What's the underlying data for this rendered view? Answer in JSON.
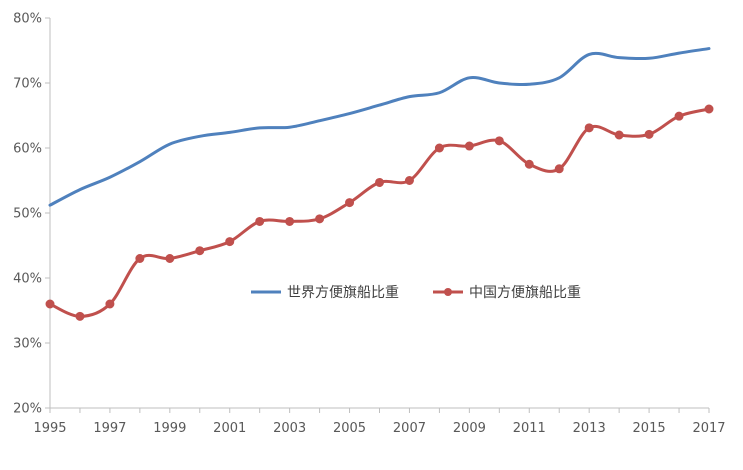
{
  "chart_data": {
    "type": "line",
    "title": "",
    "xlabel": "",
    "ylabel": "",
    "x": [
      1995,
      1996,
      1997,
      1998,
      1999,
      2000,
      2001,
      2002,
      2003,
      2004,
      2005,
      2006,
      2007,
      2008,
      2009,
      2010,
      2011,
      2012,
      2013,
      2014,
      2015,
      2016,
      2017
    ],
    "x_tick_labels": [
      "1995",
      "1997",
      "1999",
      "2001",
      "2003",
      "2005",
      "2007",
      "2009",
      "2011",
      "2013",
      "2015",
      "2017"
    ],
    "y_tick_labels": [
      "20%",
      "30%",
      "40%",
      "50%",
      "60%",
      "70%",
      "80%"
    ],
    "ylim": [
      20,
      80
    ],
    "y_ticks": [
      20,
      30,
      40,
      50,
      60,
      70,
      80
    ],
    "grid": false,
    "legend_position": "center",
    "series": [
      {
        "name": "世界方便旗船比重",
        "color": "#4F81BD",
        "markers": false,
        "values": [
          51.2,
          53.6,
          55.5,
          57.9,
          60.6,
          61.8,
          62.4,
          63.1,
          63.2,
          64.2,
          65.3,
          66.6,
          67.9,
          68.5,
          70.8,
          70.0,
          69.8,
          70.8,
          74.4,
          73.9,
          73.8,
          74.6,
          75.3
        ]
      },
      {
        "name": "中国方便旗船比重",
        "color": "#C0504D",
        "markers": true,
        "values": [
          36.0,
          34.1,
          36.0,
          43.0,
          43.0,
          44.2,
          45.6,
          48.7,
          48.7,
          49.1,
          51.6,
          54.7,
          55.0,
          60.0,
          60.3,
          61.1,
          57.5,
          56.8,
          63.1,
          62.0,
          62.1,
          64.9,
          66.0
        ]
      }
    ]
  }
}
